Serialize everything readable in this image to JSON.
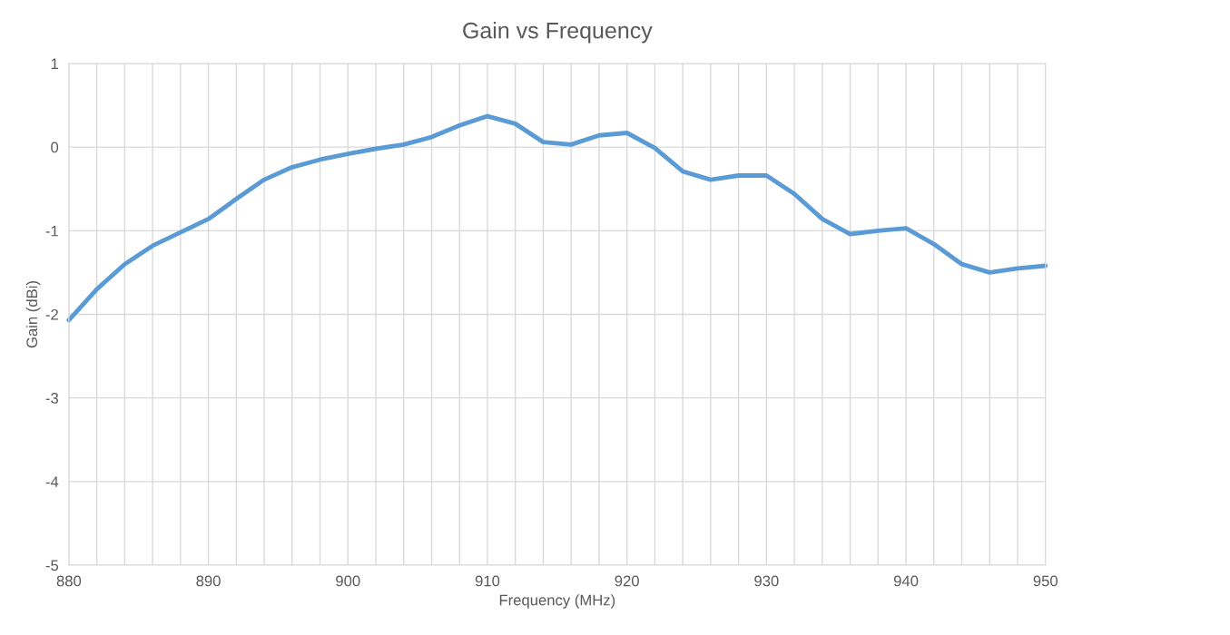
{
  "chart_data": {
    "type": "line",
    "title": "Gain vs Frequency",
    "xlabel": "Frequency (MHz)",
    "ylabel": "Gain (dBi)",
    "x": [
      880,
      882,
      884,
      886,
      888,
      890,
      892,
      894,
      896,
      898,
      900,
      902,
      904,
      906,
      908,
      910,
      912,
      914,
      916,
      918,
      920,
      922,
      924,
      926,
      928,
      930,
      932,
      934,
      936,
      938,
      940,
      942,
      944,
      946,
      948,
      950
    ],
    "series": [
      {
        "color": "#5b9bd5",
        "values": [
          -2.07,
          -1.7,
          -1.4,
          -1.18,
          -1.02,
          -0.86,
          -0.62,
          -0.39,
          -0.24,
          -0.15,
          -0.08,
          -0.02,
          0.03,
          0.12,
          0.26,
          0.37,
          0.28,
          0.06,
          0.03,
          0.14,
          0.17,
          -0.01,
          -0.29,
          -0.39,
          -0.34,
          -0.34,
          -0.56,
          -0.86,
          -1.04,
          -1.0,
          -0.97,
          -1.16,
          -1.4,
          -1.5,
          -1.45,
          -1.42
        ]
      }
    ],
    "xlim": [
      880,
      950
    ],
    "xticks": [
      880,
      {
        "value": 882,
        "label": null
      },
      {
        "value": 884,
        "label": null
      },
      {
        "value": 886,
        "label": null
      },
      {
        "value": 888,
        "label": null
      },
      890,
      {
        "value": 892,
        "label": null
      },
      {
        "value": 894,
        "label": null
      },
      {
        "value": 896,
        "label": null
      },
      {
        "value": 898,
        "label": null
      },
      900,
      {
        "value": 902,
        "label": null
      },
      {
        "value": 904,
        "label": null
      },
      {
        "value": 906,
        "label": null
      },
      {
        "value": 908,
        "label": null
      },
      910,
      {
        "value": 912,
        "label": null
      },
      {
        "value": 914,
        "label": null
      },
      {
        "value": 916,
        "label": null
      },
      {
        "value": 918,
        "label": null
      },
      920,
      {
        "value": 922,
        "label": null
      },
      {
        "value": 924,
        "label": null
      },
      {
        "value": 926,
        "label": null
      },
      {
        "value": 928,
        "label": null
      },
      930,
      {
        "value": 932,
        "label": null
      },
      {
        "value": 934,
        "label": null
      },
      {
        "value": 936,
        "label": null
      },
      {
        "value": 938,
        "label": null
      },
      940,
      {
        "value": 942,
        "label": null
      },
      {
        "value": 944,
        "label": null
      },
      {
        "value": 946,
        "label": null
      },
      {
        "value": 948,
        "label": null
      },
      950
    ],
    "ylim": [
      -5,
      1
    ],
    "yticks": [
      -5,
      -4,
      -3,
      -2,
      -1,
      0,
      1
    ],
    "grid": true,
    "marker": "none",
    "line_style": "solid"
  }
}
